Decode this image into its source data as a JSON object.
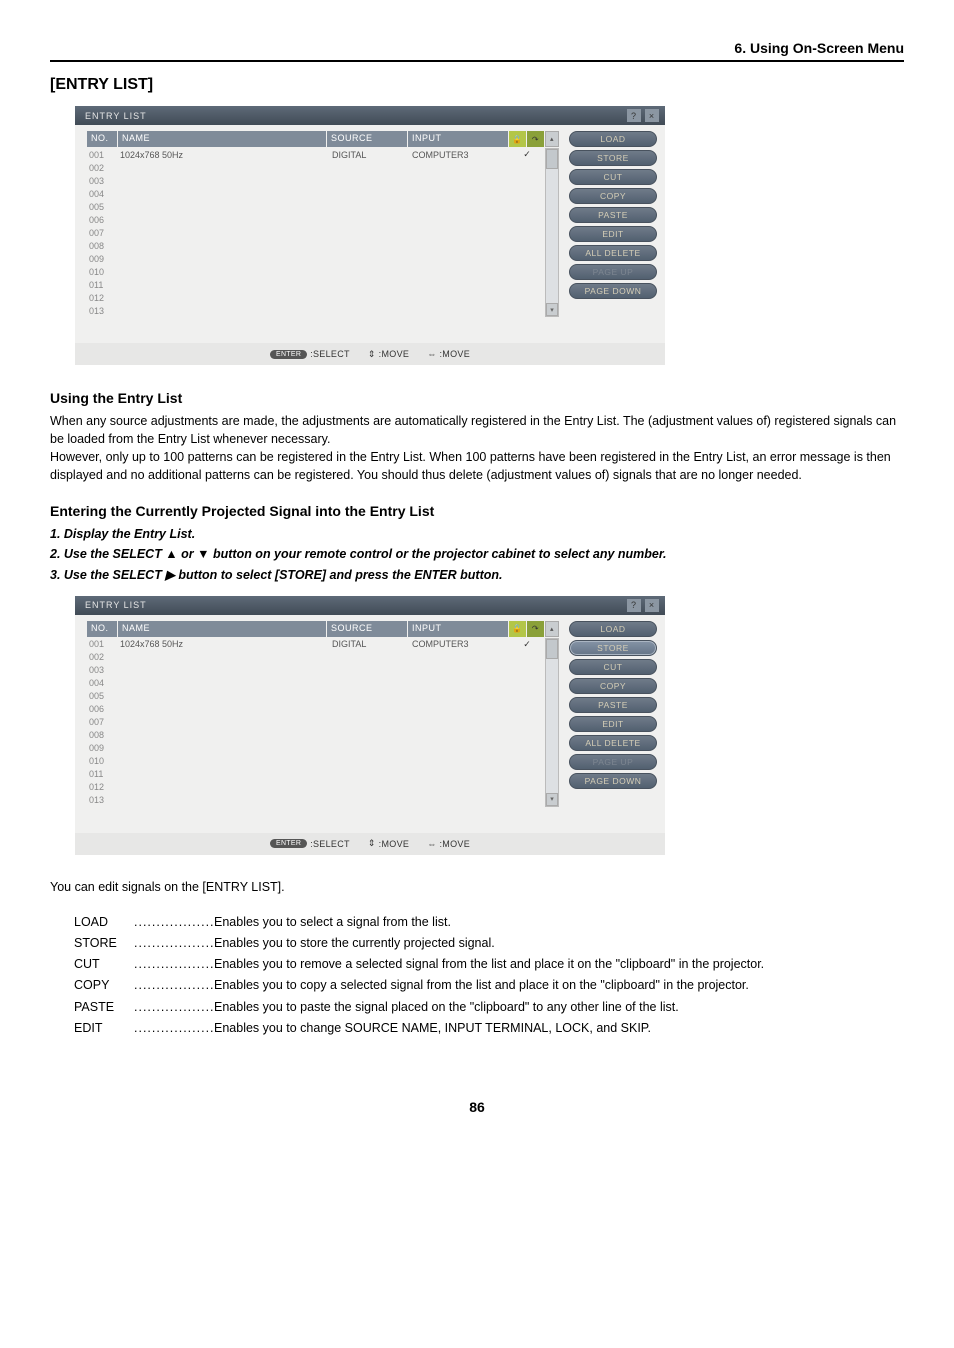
{
  "section_header": "6. Using On-Screen Menu",
  "entry_title": "[ENTRY LIST]",
  "panel": {
    "title": "ENTRY LIST",
    "columns": {
      "no": "NO.",
      "name": "NAME",
      "source": "SOURCE",
      "input": "INPUT"
    },
    "rows": [
      {
        "no": "001",
        "name": "1024x768 50Hz",
        "source": "DIGITAL",
        "input": "COMPUTER3",
        "check": "✓"
      },
      {
        "no": "002",
        "name": "",
        "source": "",
        "input": "",
        "check": ""
      },
      {
        "no": "003",
        "name": "",
        "source": "",
        "input": "",
        "check": ""
      },
      {
        "no": "004",
        "name": "",
        "source": "",
        "input": "",
        "check": ""
      },
      {
        "no": "005",
        "name": "",
        "source": "",
        "input": "",
        "check": ""
      },
      {
        "no": "006",
        "name": "",
        "source": "",
        "input": "",
        "check": ""
      },
      {
        "no": "007",
        "name": "",
        "source": "",
        "input": "",
        "check": ""
      },
      {
        "no": "008",
        "name": "",
        "source": "",
        "input": "",
        "check": ""
      },
      {
        "no": "009",
        "name": "",
        "source": "",
        "input": "",
        "check": ""
      },
      {
        "no": "010",
        "name": "",
        "source": "",
        "input": "",
        "check": ""
      },
      {
        "no": "011",
        "name": "",
        "source": "",
        "input": "",
        "check": ""
      },
      {
        "no": "012",
        "name": "",
        "source": "",
        "input": "",
        "check": ""
      },
      {
        "no": "013",
        "name": "",
        "source": "",
        "input": "",
        "check": ""
      }
    ],
    "buttons": {
      "load": "LOAD",
      "store": "STORE",
      "cut": "CUT",
      "copy": "COPY",
      "paste": "PASTE",
      "edit": "EDIT",
      "all_delete": "ALL DELETE",
      "page_up": "PAGE UP",
      "page_down": "PAGE DOWN"
    },
    "statusbar": {
      "enter_label": "ENTER",
      "select": ":SELECT",
      "move_v": ":MOVE",
      "move_h": ":MOVE",
      "updown_glyph": "⇕",
      "leftright_glyph": "⇔"
    }
  },
  "panel1_highlight": "none",
  "panel2_highlight": "store",
  "using_heading": "Using the Entry List",
  "using_para": "When any source adjustments are made, the adjustments are automatically registered in the Entry List. The (adjustment values of) registered signals can be loaded from the Entry List whenever necessary.\nHowever, only up to 100 patterns can be registered in the Entry List. When 100 patterns have been registered in the Entry List, an error message is then displayed and no additional patterns can be registered. You should thus delete (adjustment values of) signals that are no longer needed.",
  "entering_heading": "Entering the Currently Projected Signal into the Entry List",
  "steps": [
    "1.  Display the Entry List.",
    "2.  Use the SELECT ▲ or ▼ button on your remote control or the projector cabinet to select any number.",
    "3.  Use the SELECT ▶ button to select [STORE] and press the ENTER button."
  ],
  "edit_intro": "You can edit signals on the [ENTRY LIST].",
  "definitions": [
    {
      "term": "LOAD",
      "desc": "Enables you to select a signal from the list."
    },
    {
      "term": "STORE",
      "desc": "Enables you to store the currently projected signal."
    },
    {
      "term": "CUT",
      "desc": "Enables you to remove a selected signal from the list and place it on the \"clipboard\" in the projector."
    },
    {
      "term": "COPY",
      "desc": "Enables you to copy a selected signal from the list and place it on the \"clipboard\" in the projector."
    },
    {
      "term": "PASTE",
      "desc": "Enables you to paste the signal placed on the \"clipboard\" to any other line of the list."
    },
    {
      "term": "EDIT",
      "desc": "Enables you to change SOURCE NAME, INPUT TERMINAL, LOCK, and SKIP."
    }
  ],
  "page_number": "86",
  "colors": {
    "titlebar_grad_top": "#5e6a78",
    "titlebar_grad_bot": "#414b56",
    "header_cell": "#7f8b99",
    "body_bg": "#f0f0ef",
    "btn_grad_top": "#6f7b89",
    "btn_grad_bot": "#526070",
    "btn_text": "#d5ceb7",
    "flag_bg1": "#b3c648",
    "flag_bg2": "#8aa039"
  }
}
